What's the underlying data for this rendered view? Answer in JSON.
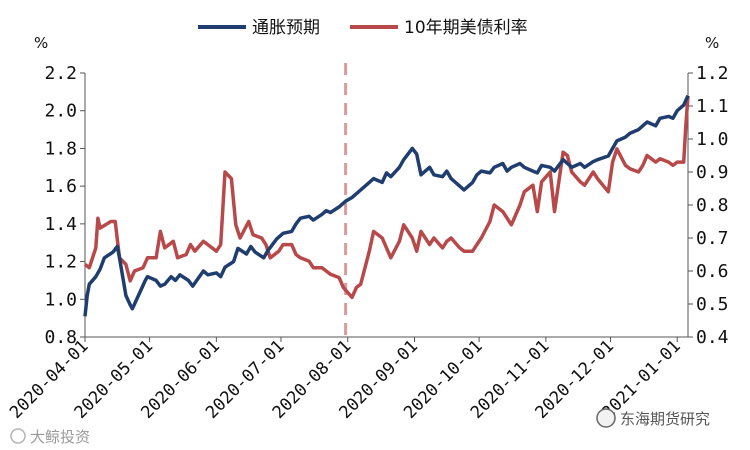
{
  "chart_data": {
    "type": "line",
    "title": "",
    "xlabel": "",
    "y_left_unit": "%",
    "y_right_unit": "%",
    "ylim_left": [
      0.8,
      2.2
    ],
    "ylim_right": [
      0.4,
      1.2
    ],
    "y_left_ticks": [
      "0.8",
      "1.0",
      "1.2",
      "1.4",
      "1.6",
      "1.8",
      "2.0",
      "2.2"
    ],
    "y_right_ticks": [
      "0.4",
      "0.5",
      "0.6",
      "0.7",
      "0.8",
      "0.9",
      "1.0",
      "1.1",
      "1.2"
    ],
    "x_ticks": [
      "2020-04-01",
      "2020-05-01",
      "2020-06-01",
      "2020-07-01",
      "2020-08-01",
      "2020-09-01",
      "2020-10-01",
      "2020-11-01",
      "2020-12-01",
      "2021-01-01"
    ],
    "x_range": [
      "2020-04-01",
      "2021-01-06"
    ],
    "marker_date": "2020-07-31",
    "grid": false,
    "legend_position": "top",
    "series": [
      {
        "name": "通胀预期",
        "axis": "left",
        "color": "#1f3d6e",
        "points": [
          [
            "2020-04-01",
            0.91
          ],
          [
            "2020-04-02",
            1.02
          ],
          [
            "2020-04-03",
            1.08
          ],
          [
            "2020-04-06",
            1.12
          ],
          [
            "2020-04-08",
            1.16
          ],
          [
            "2020-04-10",
            1.22
          ],
          [
            "2020-04-14",
            1.25
          ],
          [
            "2020-04-16",
            1.28
          ],
          [
            "2020-04-17",
            1.22
          ],
          [
            "2020-04-20",
            1.02
          ],
          [
            "2020-04-22",
            0.97
          ],
          [
            "2020-04-23",
            0.95
          ],
          [
            "2020-04-27",
            1.05
          ],
          [
            "2020-04-29",
            1.1
          ],
          [
            "2020-04-30",
            1.12
          ],
          [
            "2020-05-04",
            1.1
          ],
          [
            "2020-05-06",
            1.07
          ],
          [
            "2020-05-08",
            1.08
          ],
          [
            "2020-05-11",
            1.12
          ],
          [
            "2020-05-13",
            1.1
          ],
          [
            "2020-05-15",
            1.13
          ],
          [
            "2020-05-19",
            1.1
          ],
          [
            "2020-05-21",
            1.07
          ],
          [
            "2020-05-26",
            1.15
          ],
          [
            "2020-05-28",
            1.13
          ],
          [
            "2020-06-01",
            1.14
          ],
          [
            "2020-06-03",
            1.12
          ],
          [
            "2020-06-05",
            1.17
          ],
          [
            "2020-06-09",
            1.2
          ],
          [
            "2020-06-11",
            1.27
          ],
          [
            "2020-06-15",
            1.24
          ],
          [
            "2020-06-17",
            1.28
          ],
          [
            "2020-06-19",
            1.25
          ],
          [
            "2020-06-23",
            1.22
          ],
          [
            "2020-06-25",
            1.26
          ],
          [
            "2020-06-29",
            1.32
          ],
          [
            "2020-07-02",
            1.35
          ],
          [
            "2020-07-06",
            1.36
          ],
          [
            "2020-07-08",
            1.4
          ],
          [
            "2020-07-10",
            1.43
          ],
          [
            "2020-07-14",
            1.44
          ],
          [
            "2020-07-16",
            1.42
          ],
          [
            "2020-07-20",
            1.45
          ],
          [
            "2020-07-22",
            1.47
          ],
          [
            "2020-07-24",
            1.46
          ],
          [
            "2020-07-28",
            1.49
          ],
          [
            "2020-07-31",
            1.52
          ],
          [
            "2020-08-03",
            1.54
          ],
          [
            "2020-08-05",
            1.56
          ],
          [
            "2020-08-07",
            1.58
          ],
          [
            "2020-08-11",
            1.62
          ],
          [
            "2020-08-13",
            1.64
          ],
          [
            "2020-08-17",
            1.62
          ],
          [
            "2020-08-19",
            1.67
          ],
          [
            "2020-08-21",
            1.65
          ],
          [
            "2020-08-25",
            1.7
          ],
          [
            "2020-08-27",
            1.74
          ],
          [
            "2020-08-31",
            1.8
          ],
          [
            "2020-09-02",
            1.77
          ],
          [
            "2020-09-04",
            1.66
          ],
          [
            "2020-09-08",
            1.7
          ],
          [
            "2020-09-10",
            1.66
          ],
          [
            "2020-09-14",
            1.65
          ],
          [
            "2020-09-16",
            1.68
          ],
          [
            "2020-09-18",
            1.64
          ],
          [
            "2020-09-22",
            1.6
          ],
          [
            "2020-09-24",
            1.58
          ],
          [
            "2020-09-28",
            1.62
          ],
          [
            "2020-09-30",
            1.66
          ],
          [
            "2020-10-02",
            1.68
          ],
          [
            "2020-10-06",
            1.67
          ],
          [
            "2020-10-08",
            1.7
          ],
          [
            "2020-10-12",
            1.72
          ],
          [
            "2020-10-14",
            1.68
          ],
          [
            "2020-10-16",
            1.7
          ],
          [
            "2020-10-20",
            1.72
          ],
          [
            "2020-10-22",
            1.7
          ],
          [
            "2020-10-26",
            1.68
          ],
          [
            "2020-10-28",
            1.67
          ],
          [
            "2020-10-30",
            1.71
          ],
          [
            "2020-11-03",
            1.7
          ],
          [
            "2020-11-05",
            1.68
          ],
          [
            "2020-11-09",
            1.74
          ],
          [
            "2020-11-11",
            1.72
          ],
          [
            "2020-11-13",
            1.7
          ],
          [
            "2020-11-17",
            1.72
          ],
          [
            "2020-11-19",
            1.7
          ],
          [
            "2020-11-23",
            1.73
          ],
          [
            "2020-11-25",
            1.74
          ],
          [
            "2020-11-30",
            1.76
          ],
          [
            "2020-12-02",
            1.8
          ],
          [
            "2020-12-04",
            1.84
          ],
          [
            "2020-12-08",
            1.86
          ],
          [
            "2020-12-10",
            1.88
          ],
          [
            "2020-12-14",
            1.9
          ],
          [
            "2020-12-16",
            1.92
          ],
          [
            "2020-12-18",
            1.94
          ],
          [
            "2020-12-22",
            1.92
          ],
          [
            "2020-12-24",
            1.96
          ],
          [
            "2020-12-28",
            1.97
          ],
          [
            "2020-12-30",
            1.96
          ],
          [
            "2021-01-01",
            2.0
          ],
          [
            "2021-01-04",
            2.03
          ],
          [
            "2021-01-06",
            2.08
          ]
        ]
      },
      {
        "name": "10年期美债利率",
        "axis": "right",
        "color": "#b8494b",
        "points": [
          [
            "2020-04-01",
            0.62
          ],
          [
            "2020-04-03",
            0.61
          ],
          [
            "2020-04-06",
            0.67
          ],
          [
            "2020-04-07",
            0.76
          ],
          [
            "2020-04-08",
            0.73
          ],
          [
            "2020-04-13",
            0.75
          ],
          [
            "2020-04-15",
            0.75
          ],
          [
            "2020-04-17",
            0.64
          ],
          [
            "2020-04-20",
            0.62
          ],
          [
            "2020-04-22",
            0.57
          ],
          [
            "2020-04-24",
            0.6
          ],
          [
            "2020-04-28",
            0.61
          ],
          [
            "2020-04-30",
            0.64
          ],
          [
            "2020-05-04",
            0.64
          ],
          [
            "2020-05-06",
            0.72
          ],
          [
            "2020-05-08",
            0.67
          ],
          [
            "2020-05-12",
            0.69
          ],
          [
            "2020-05-14",
            0.64
          ],
          [
            "2020-05-18",
            0.65
          ],
          [
            "2020-05-20",
            0.68
          ],
          [
            "2020-05-22",
            0.66
          ],
          [
            "2020-05-26",
            0.69
          ],
          [
            "2020-05-28",
            0.68
          ],
          [
            "2020-06-01",
            0.66
          ],
          [
            "2020-06-03",
            0.68
          ],
          [
            "2020-06-05",
            0.9
          ],
          [
            "2020-06-08",
            0.88
          ],
          [
            "2020-06-10",
            0.74
          ],
          [
            "2020-06-12",
            0.7
          ],
          [
            "2020-06-16",
            0.75
          ],
          [
            "2020-06-18",
            0.71
          ],
          [
            "2020-06-22",
            0.7
          ],
          [
            "2020-06-24",
            0.68
          ],
          [
            "2020-06-26",
            0.64
          ],
          [
            "2020-06-30",
            0.66
          ],
          [
            "2020-07-02",
            0.68
          ],
          [
            "2020-07-06",
            0.68
          ],
          [
            "2020-07-08",
            0.65
          ],
          [
            "2020-07-10",
            0.64
          ],
          [
            "2020-07-14",
            0.63
          ],
          [
            "2020-07-16",
            0.61
          ],
          [
            "2020-07-20",
            0.61
          ],
          [
            "2020-07-22",
            0.6
          ],
          [
            "2020-07-24",
            0.59
          ],
          [
            "2020-07-28",
            0.58
          ],
          [
            "2020-07-30",
            0.55
          ],
          [
            "2020-08-03",
            0.52
          ],
          [
            "2020-08-05",
            0.55
          ],
          [
            "2020-08-07",
            0.56
          ],
          [
            "2020-08-11",
            0.66
          ],
          [
            "2020-08-13",
            0.72
          ],
          [
            "2020-08-17",
            0.7
          ],
          [
            "2020-08-19",
            0.67
          ],
          [
            "2020-08-21",
            0.64
          ],
          [
            "2020-08-25",
            0.69
          ],
          [
            "2020-08-27",
            0.74
          ],
          [
            "2020-08-31",
            0.7
          ],
          [
            "2020-09-02",
            0.66
          ],
          [
            "2020-09-04",
            0.72
          ],
          [
            "2020-09-08",
            0.68
          ],
          [
            "2020-09-10",
            0.7
          ],
          [
            "2020-09-14",
            0.67
          ],
          [
            "2020-09-16",
            0.69
          ],
          [
            "2020-09-18",
            0.7
          ],
          [
            "2020-09-22",
            0.67
          ],
          [
            "2020-09-24",
            0.66
          ],
          [
            "2020-09-28",
            0.66
          ],
          [
            "2020-09-30",
            0.68
          ],
          [
            "2020-10-02",
            0.7
          ],
          [
            "2020-10-06",
            0.75
          ],
          [
            "2020-10-08",
            0.8
          ],
          [
            "2020-10-12",
            0.78
          ],
          [
            "2020-10-14",
            0.76
          ],
          [
            "2020-10-16",
            0.74
          ],
          [
            "2020-10-20",
            0.8
          ],
          [
            "2020-10-22",
            0.84
          ],
          [
            "2020-10-26",
            0.86
          ],
          [
            "2020-10-28",
            0.78
          ],
          [
            "2020-10-30",
            0.87
          ],
          [
            "2020-11-03",
            0.9
          ],
          [
            "2020-11-05",
            0.78
          ],
          [
            "2020-11-09",
            0.96
          ],
          [
            "2020-11-11",
            0.95
          ],
          [
            "2020-11-13",
            0.9
          ],
          [
            "2020-11-17",
            0.87
          ],
          [
            "2020-11-19",
            0.86
          ],
          [
            "2020-11-23",
            0.9
          ],
          [
            "2020-11-25",
            0.88
          ],
          [
            "2020-11-30",
            0.84
          ],
          [
            "2020-12-02",
            0.93
          ],
          [
            "2020-12-04",
            0.97
          ],
          [
            "2020-12-08",
            0.92
          ],
          [
            "2020-12-10",
            0.91
          ],
          [
            "2020-12-14",
            0.9
          ],
          [
            "2020-12-16",
            0.92
          ],
          [
            "2020-12-18",
            0.95
          ],
          [
            "2020-12-22",
            0.93
          ],
          [
            "2020-12-24",
            0.94
          ],
          [
            "2020-12-28",
            0.93
          ],
          [
            "2020-12-30",
            0.92
          ],
          [
            "2021-01-01",
            0.93
          ],
          [
            "2021-01-04",
            0.93
          ],
          [
            "2021-01-05",
            1.04
          ],
          [
            "2021-01-06",
            1.13
          ]
        ]
      }
    ]
  },
  "watermark_left": "大鲸投资",
  "watermark_right": "东海期货研究"
}
